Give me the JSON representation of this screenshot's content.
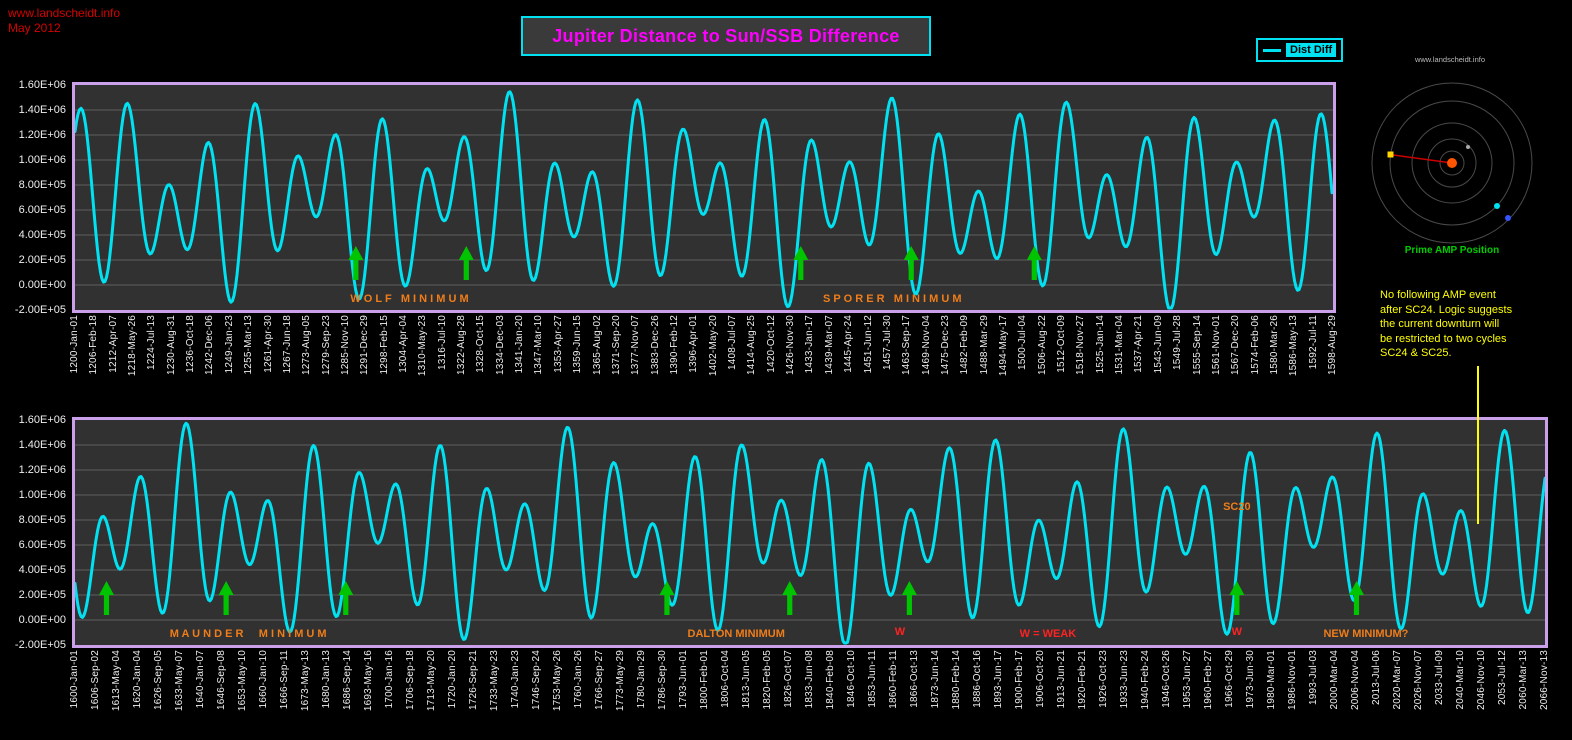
{
  "meta": {
    "site": "www.landscheidt.info",
    "date": "May 2012"
  },
  "title": {
    "text": "Jupiter Distance to Sun/SSB Difference"
  },
  "legend": {
    "label": "Dist Diff"
  },
  "inset": {
    "watermark": "www.landscheidt.info",
    "caption": "Prime AMP Position"
  },
  "note": {
    "lines": [
      "No following AMP event",
      "after SC24. Logic suggests",
      "the current downturn will",
      "be restricted to two cycles",
      "SC24 & SC25."
    ]
  },
  "colors": {
    "curve": "#00e2f2",
    "grid": "#5f5f5f",
    "plot_bg": "#313131",
    "border": "#c9a0e9",
    "orange": "#ef7d1a",
    "red": "#ff2222",
    "green": "#00c400",
    "yellow": "#ffff00",
    "magenta": "#ff00ff",
    "tick_text": "#eeeeee",
    "meta_red": "#d40000"
  },
  "chart_data": [
    {
      "type": "line",
      "title": "Jupiter Distance to Sun/SSB Difference (1200-1598)",
      "ylabel": "",
      "ylim": [
        -200000,
        1600000
      ],
      "ytick_step": 200000,
      "ytick_labels": [
        "1.60E+06",
        "1.40E+06",
        "1.20E+06",
        "1.00E+06",
        "8.00E+05",
        "6.00E+05",
        "4.00E+05",
        "2.00E+05",
        "0.00E+00",
        "-2.00E+05"
      ],
      "x_range_years": [
        1200.0,
        1598.66
      ],
      "xtick_labels": [
        "1200-Jan-01",
        "1206-Feb-18",
        "1212-Apr-07",
        "1218-May-26",
        "1224-Jul-13",
        "1230-Aug-31",
        "1236-Oct-18",
        "1242-Dec-06",
        "1249-Jan-23",
        "1255-Mar-13",
        "1261-Apr-30",
        "1267-Jun-18",
        "1273-Aug-05",
        "1279-Sep-23",
        "1285-Nov-10",
        "1291-Dec-29",
        "1298-Feb-15",
        "1304-Apr-04",
        "1310-May-23",
        "1316-Jul-10",
        "1322-Aug-28",
        "1328-Oct-15",
        "1334-Dec-03",
        "1341-Jan-20",
        "1347-Mar-10",
        "1353-Apr-27",
        "1359-Jun-15",
        "1365-Aug-02",
        "1371-Sep-20",
        "1377-Nov-07",
        "1383-Dec-26",
        "1390-Feb-12",
        "1396-Apr-01",
        "1402-May-20",
        "1408-Jul-07",
        "1414-Aug-25",
        "1420-Oct-12",
        "1426-Nov-30",
        "1433-Jan-17",
        "1439-Mar-07",
        "1445-Apr-24",
        "1451-Jun-12",
        "1457-Jul-30",
        "1463-Sep-17",
        "1469-Nov-04",
        "1475-Dec-23",
        "1482-Feb-09",
        "1488-Mar-29",
        "1494-May-17",
        "1500-Jul-04",
        "1506-Aug-22",
        "1512-Oct-09",
        "1518-Nov-27",
        "1525-Jan-14",
        "1531-Mar-04",
        "1537-Apr-21",
        "1543-Jun-09",
        "1549-Jul-28",
        "1555-Sep-14",
        "1561-Nov-01",
        "1567-Dec-20",
        "1574-Feb-06",
        "1580-Mar-26",
        "1586-May-13",
        "1592-Jul-11",
        "1598-Aug-29"
      ],
      "series": [
        {
          "name": "Dist Diff"
        }
      ],
      "annotations": [
        {
          "text": "W O L F   M I N I M U M",
          "color_key": "orange",
          "x_year": 1306,
          "y_value": -120000
        },
        {
          "text": "S P O R E R   M I N I M U M",
          "color_key": "orange",
          "x_year": 1459,
          "y_value": -120000
        }
      ],
      "arrows": {
        "color_key": "green",
        "x_years": [
          1289,
          1324,
          1430,
          1465,
          1504
        ]
      }
    },
    {
      "type": "line",
      "title": "Jupiter Distance to Sun/SSB Difference (1600-2066)",
      "ylabel": "",
      "ylim": [
        -200000,
        1600000
      ],
      "ytick_step": 200000,
      "ytick_labels": [
        "1.60E+06",
        "1.40E+06",
        "1.20E+06",
        "1.00E+06",
        "8.00E+05",
        "6.00E+05",
        "4.00E+05",
        "2.00E+05",
        "0.00E+00",
        "-2.00E+05"
      ],
      "x_range_years": [
        1600.0,
        2066.87
      ],
      "xtick_labels": [
        "1600-Jan-01",
        "1606-Sep-02",
        "1613-May-04",
        "1620-Jan-04",
        "1626-Sep-05",
        "1633-May-07",
        "1640-Jan-07",
        "1646-Sep-08",
        "1653-May-10",
        "1660-Jan-10",
        "1666-Sep-11",
        "1673-May-13",
        "1680-Jan-13",
        "1686-Sep-14",
        "1693-May-16",
        "1700-Jan-16",
        "1706-Sep-18",
        "1713-May-20",
        "1720-Jan-20",
        "1726-Sep-21",
        "1733-May-23",
        "1740-Jan-23",
        "1746-Sep-24",
        "1753-May-26",
        "1760-Jan-26",
        "1766-Sep-27",
        "1773-May-29",
        "1780-Jan-29",
        "1786-Sep-30",
        "1793-Jun-01",
        "1800-Feb-01",
        "1806-Oct-04",
        "1813-Jun-05",
        "1820-Feb-05",
        "1826-Oct-07",
        "1833-Jun-08",
        "1840-Feb-08",
        "1846-Oct-10",
        "1853-Jun-11",
        "1860-Feb-11",
        "1866-Oct-13",
        "1873-Jun-14",
        "1880-Feb-14",
        "1886-Oct-16",
        "1893-Jun-17",
        "1900-Feb-17",
        "1906-Oct-20",
        "1913-Jun-21",
        "1920-Feb-21",
        "1926-Oct-23",
        "1933-Jun-23",
        "1940-Feb-24",
        "1946-Oct-26",
        "1953-Jun-27",
        "1960-Feb-27",
        "1966-Oct-29",
        "1973-Jun-30",
        "1980-Mar-01",
        "1986-Nov-01",
        "1993-Jul-03",
        "2000-Mar-04",
        "2006-Nov-04",
        "2013-Jul-06",
        "2020-Mar-07",
        "2026-Nov-07",
        "2033-Jul-09",
        "2040-Mar-10",
        "2046-Nov-10",
        "2053-Jul-12",
        "2060-Mar-13",
        "2066-Nov-13"
      ],
      "series": [
        {
          "name": "Dist Diff"
        }
      ],
      "annotations": [
        {
          "text": "M A U N D E R     M I N I M U M",
          "color_key": "orange",
          "x_year": 1655,
          "y_value": -120000
        },
        {
          "text": "DALTON MINIMUM",
          "color_key": "orange",
          "x_year": 1810,
          "y_value": -120000
        },
        {
          "text": "W",
          "color_key": "red",
          "x_year": 1862,
          "y_value": -100000
        },
        {
          "text": "W = WEAK",
          "color_key": "red",
          "x_year": 1909,
          "y_value": -120000
        },
        {
          "text": "W",
          "color_key": "red",
          "x_year": 1969,
          "y_value": -100000
        },
        {
          "text": "NEW MINIMUM?",
          "color_key": "orange",
          "x_year": 2010,
          "y_value": -120000
        },
        {
          "text": "SC20",
          "color_key": "orange",
          "x_year": 1969,
          "y_value": 900000
        }
      ],
      "arrows": {
        "color_key": "green",
        "x_years": [
          1610,
          1648,
          1686,
          1788,
          1827,
          1865,
          1969,
          2007
        ]
      }
    }
  ],
  "series_model": {
    "description": "approximation of the quasi-periodic Dist Diff curve read from the plot",
    "t_ref": 1200,
    "base": 680000,
    "components": [
      {
        "amp": 480000,
        "period": 13.52,
        "phase": 0.4
      },
      {
        "amp": 300000,
        "period": 19.86,
        "phase": 1.9
      },
      {
        "amp": 120000,
        "period": 61.0,
        "phase": 0.7
      }
    ]
  }
}
